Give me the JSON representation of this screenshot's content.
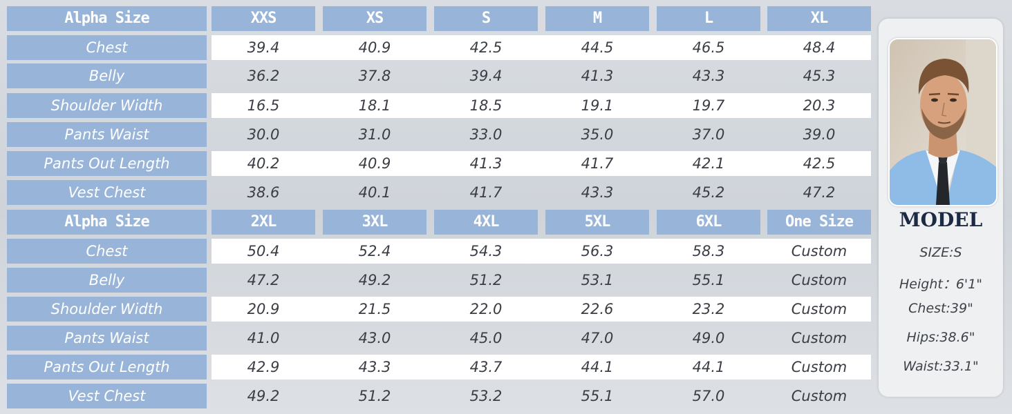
{
  "table1": {
    "label": "Alpha Size",
    "sizes": [
      "XXS",
      "XS",
      "S",
      "M",
      "L",
      "XL"
    ],
    "rows": [
      {
        "label": "Chest",
        "values": [
          "39.4",
          "40.9",
          "42.5",
          "44.5",
          "46.5",
          "48.4"
        ]
      },
      {
        "label": "Belly",
        "values": [
          "36.2",
          "37.8",
          "39.4",
          "41.3",
          "43.3",
          "45.3"
        ]
      },
      {
        "label": "Shoulder Width",
        "values": [
          "16.5",
          "18.1",
          "18.5",
          "19.1",
          "19.7",
          "20.3"
        ]
      },
      {
        "label": "Pants Waist",
        "values": [
          "30.0",
          "31.0",
          "33.0",
          "35.0",
          "37.0",
          "39.0"
        ]
      },
      {
        "label": "Pants Out Length",
        "values": [
          "40.2",
          "40.9",
          "41.3",
          "41.7",
          "42.1",
          "42.5"
        ]
      },
      {
        "label": "Vest Chest",
        "values": [
          "38.6",
          "40.1",
          "41.7",
          "43.3",
          "45.2",
          "47.2"
        ]
      }
    ]
  },
  "table2": {
    "label": "Alpha Size",
    "sizes": [
      "2XL",
      "3XL",
      "4XL",
      "5XL",
      "6XL",
      "One Size"
    ],
    "rows": [
      {
        "label": "Chest",
        "values": [
          "50.4",
          "52.4",
          "54.3",
          "56.3",
          "58.3",
          "Custom"
        ]
      },
      {
        "label": "Belly",
        "values": [
          "47.2",
          "49.2",
          "51.2",
          "53.1",
          "55.1",
          "Custom"
        ]
      },
      {
        "label": "Shoulder Width",
        "values": [
          "20.9",
          "21.5",
          "22.0",
          "22.6",
          "23.2",
          "Custom"
        ]
      },
      {
        "label": "Pants Waist",
        "values": [
          "41.0",
          "43.0",
          "45.0",
          "47.0",
          "49.0",
          "Custom"
        ]
      },
      {
        "label": "Pants Out Length",
        "values": [
          "42.9",
          "43.3",
          "43.7",
          "44.1",
          "44.1",
          "Custom"
        ]
      },
      {
        "label": "Vest Chest",
        "values": [
          "49.2",
          "51.2",
          "53.2",
          "55.1",
          "57.0",
          "Custom"
        ]
      }
    ]
  },
  "model": {
    "title": "MODEL",
    "size": "SIZE:S",
    "height": "Height：6'1\"",
    "chest": "Chest:39\"",
    "hips": "Hips:38.6\"",
    "waist": "Waist:33.1\""
  }
}
